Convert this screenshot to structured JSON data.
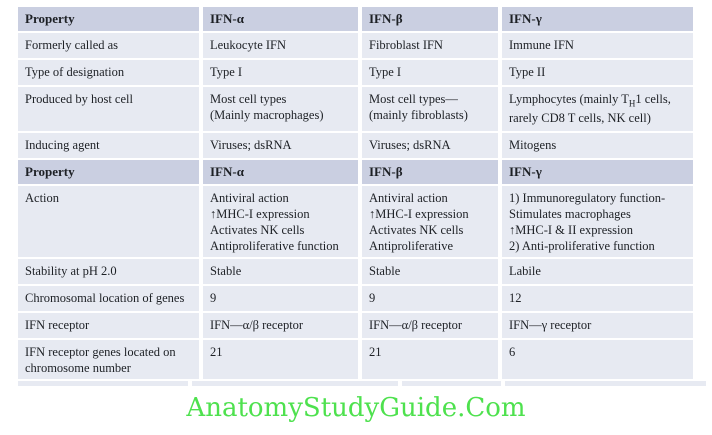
{
  "colors": {
    "header_bg": "#cacfe1",
    "body_bg": "#e7eaf2",
    "text": "#1d2025",
    "watermark_green": "#4ee14e",
    "page_bg": "#ffffff"
  },
  "table": {
    "rows": [
      {
        "type": "header",
        "cells": [
          [
            "Property"
          ],
          [
            "IFN-α"
          ],
          [
            "IFN-β"
          ],
          [
            "IFN-γ"
          ]
        ]
      },
      {
        "type": "body",
        "cells": [
          [
            "Formerly called as"
          ],
          [
            "Leukocyte IFN"
          ],
          [
            "Fibroblast IFN"
          ],
          [
            "Immune IFN"
          ]
        ]
      },
      {
        "type": "body",
        "cells": [
          [
            "Type of designation"
          ],
          [
            "Type I"
          ],
          [
            "Type I"
          ],
          [
            "Type II"
          ]
        ]
      },
      {
        "type": "body",
        "cells": [
          [
            "Produced by host cell"
          ],
          [
            "Most cell types",
            "(Mainly macrophages)"
          ],
          [
            "Most cell types—",
            "(mainly fibroblasts)"
          ],
          [
            "Lymphocytes (mainly T_{H}1 cells,",
            "rarely CD8 T cells, NK cell)"
          ]
        ]
      },
      {
        "type": "body",
        "cells": [
          [
            "Inducing agent"
          ],
          [
            "Viruses; dsRNA"
          ],
          [
            "Viruses; dsRNA"
          ],
          [
            "Mitogens"
          ]
        ]
      },
      {
        "type": "header",
        "cells": [
          [
            "Property"
          ],
          [
            "IFN-α"
          ],
          [
            "IFN-β"
          ],
          [
            "IFN-γ"
          ]
        ]
      },
      {
        "type": "body",
        "cells": [
          [
            "Action"
          ],
          [
            "Antiviral action",
            "↑MHC-I expression",
            "Activates NK cells",
            "Antiproliferative function"
          ],
          [
            "Antiviral action",
            "↑MHC-I expression",
            "Activates NK cells",
            "Antiproliferative"
          ],
          [
            "1) Immunoregulatory function-",
            "Stimulates macrophages",
            "↑MHC-I & II expression",
            "2) Anti-proliferative function"
          ]
        ]
      },
      {
        "type": "body",
        "cells": [
          [
            "Stability at pH 2.0"
          ],
          [
            "Stable"
          ],
          [
            "Stable"
          ],
          [
            "Labile"
          ]
        ]
      },
      {
        "type": "body",
        "cells": [
          [
            "Chromosomal location of genes"
          ],
          [
            "9"
          ],
          [
            "9"
          ],
          [
            "12"
          ]
        ]
      },
      {
        "type": "body",
        "cells": [
          [
            "IFN receptor"
          ],
          [
            "IFN—α/β receptor"
          ],
          [
            "IFN—α/β receptor"
          ],
          [
            "IFN—γ receptor"
          ]
        ]
      },
      {
        "type": "body",
        "cells": [
          [
            "IFN receptor genes located on",
            "chromosome number"
          ],
          [
            "21"
          ],
          [
            "21"
          ],
          [
            "6"
          ]
        ]
      }
    ]
  },
  "watermark": {
    "text": "AnatomyStudyGuide.Com"
  }
}
